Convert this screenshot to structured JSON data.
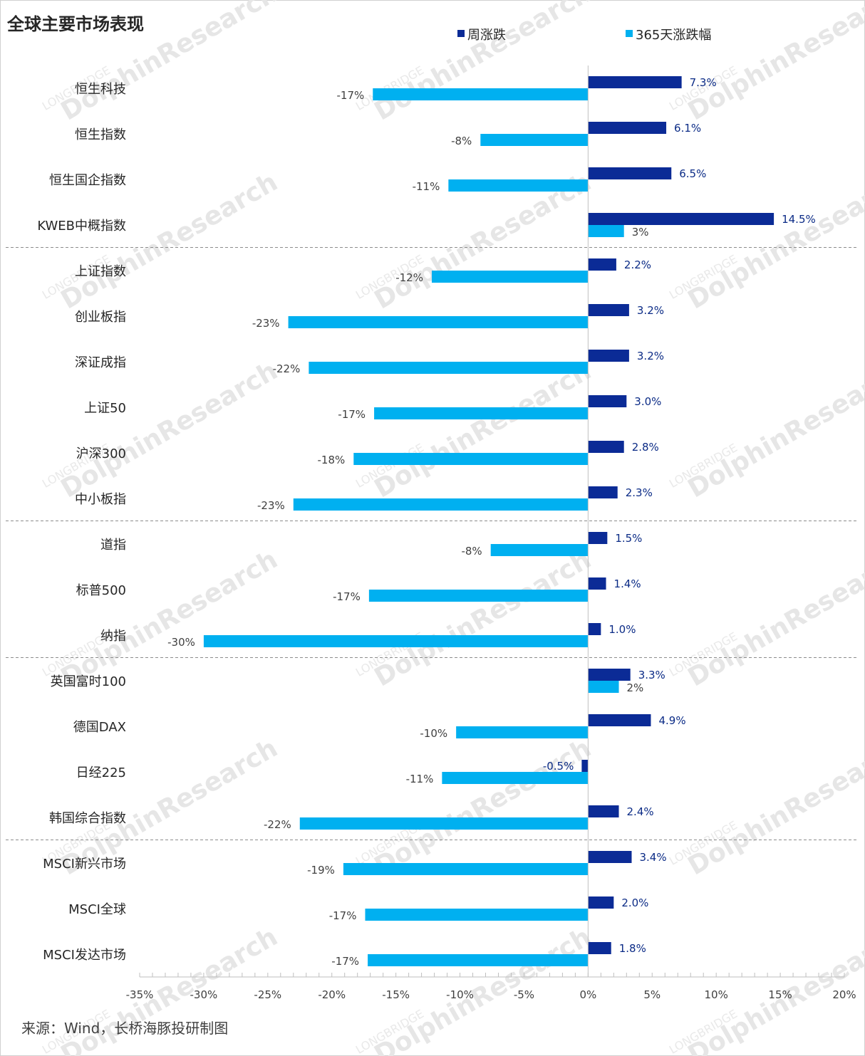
{
  "chart_data": {
    "type": "bar",
    "orientation": "horizontal",
    "title": "全球主要市场表现",
    "categories": [
      "恒生科技",
      "恒生指数",
      "恒生国企指数",
      "KWEB中概指数",
      "上证指数",
      "创业板指",
      "深证成指",
      "上证50",
      "沪深300",
      "中小板指",
      "道指",
      "标普500",
      "纳指",
      "英国富时100",
      "德国DAX",
      "日经225",
      "韩国综合指数",
      "MSCI新兴市场",
      "MSCI全球",
      "MSCI发达市场"
    ],
    "series": [
      {
        "name": "周涨跌",
        "color": "#0b2b96",
        "values": [
          7.3,
          6.1,
          6.5,
          14.5,
          2.2,
          3.2,
          3.2,
          3.0,
          2.8,
          2.3,
          1.5,
          1.4,
          1.0,
          3.3,
          4.9,
          -0.5,
          2.4,
          3.4,
          2.0,
          1.8
        ],
        "labels": [
          "7.3%",
          "6.1%",
          "6.5%",
          "14.5%",
          "2.2%",
          "3.2%",
          "3.2%",
          "3.0%",
          "2.8%",
          "2.3%",
          "1.5%",
          "1.4%",
          "1.0%",
          "3.3%",
          "4.9%",
          "-0.5%",
          "2.4%",
          "3.4%",
          "2.0%",
          "1.8%"
        ]
      },
      {
        "name": "365天涨跌幅",
        "color": "#00b0f0",
        "values": [
          -16.8,
          -8.4,
          -10.9,
          2.8,
          -12.2,
          -23.4,
          -21.8,
          -16.7,
          -18.3,
          -23.0,
          -7.6,
          -17.1,
          -30.0,
          2.4,
          -10.3,
          -11.4,
          -22.5,
          -19.1,
          -17.4,
          -17.2
        ],
        "labels": [
          "-17%",
          "-8%",
          "-11%",
          "3%",
          "-12%",
          "-23%",
          "-22%",
          "-17%",
          "-18%",
          "-23%",
          "-8%",
          "-17%",
          "-30%",
          "2%",
          "-10%",
          "-11%",
          "-22%",
          "-19%",
          "-17%",
          "-17%"
        ]
      }
    ],
    "xlim": [
      -35,
      20
    ],
    "xticks": [
      -35,
      -30,
      -25,
      -20,
      -15,
      -10,
      -5,
      0,
      5,
      10,
      15,
      20
    ],
    "xtick_labels": [
      "-35%",
      "-30%",
      "-25%",
      "-20%",
      "-15%",
      "-10%",
      "-5%",
      "0%",
      "5%",
      "10%",
      "15%",
      "20%"
    ],
    "group_separators_after_index": [
      3,
      9,
      12,
      16
    ],
    "legend_position": "top-center"
  },
  "source_note": "来源：Wind，长桥海豚投研制图",
  "watermark": {
    "brand": "DolphinResearch",
    "small": "LONGBRIDGE"
  }
}
